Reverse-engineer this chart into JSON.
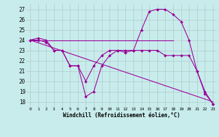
{
  "xlabel": "Windchill (Refroidissement éolien,°C)",
  "background_color": "#c8ecec",
  "grid_color": "#b0c8c8",
  "line_color": "#990099",
  "x_ticks": [
    0,
    1,
    2,
    3,
    4,
    5,
    6,
    7,
    8,
    9,
    10,
    11,
    12,
    13,
    14,
    15,
    16,
    17,
    18,
    19,
    20,
    21,
    22,
    23
  ],
  "y_ticks": [
    18,
    19,
    20,
    21,
    22,
    23,
    24,
    25,
    26,
    27
  ],
  "xlim": [
    -0.5,
    23.5
  ],
  "ylim": [
    17.5,
    27.5
  ],
  "series": [
    {
      "x": [
        0,
        1,
        2,
        3,
        4,
        5,
        6,
        7,
        8,
        9,
        10,
        11,
        12,
        13,
        14,
        15,
        16,
        17,
        18,
        19,
        20,
        21,
        22,
        23
      ],
      "y": [
        24.0,
        24.2,
        24.0,
        23.0,
        23.0,
        21.5,
        21.5,
        18.5,
        19.0,
        21.5,
        22.5,
        23.0,
        22.8,
        23.0,
        25.0,
        26.8,
        27.0,
        27.0,
        26.5,
        25.8,
        24.0,
        21.0,
        19.0,
        17.8
      ],
      "marker": true,
      "markersize": 2.0
    },
    {
      "x": [
        0,
        18
      ],
      "y": [
        24.0,
        24.0
      ],
      "marker": false,
      "markersize": 0
    },
    {
      "x": [
        0,
        23
      ],
      "y": [
        24.0,
        18.0
      ],
      "marker": false,
      "markersize": 0
    },
    {
      "x": [
        0,
        1,
        2,
        3,
        4,
        5,
        6,
        7,
        8,
        9,
        10,
        11,
        12,
        13,
        14,
        15,
        16,
        17,
        18,
        19,
        20,
        21,
        22,
        23
      ],
      "y": [
        24.0,
        24.0,
        23.8,
        23.0,
        23.0,
        21.5,
        21.5,
        20.0,
        21.5,
        22.5,
        23.0,
        23.0,
        23.0,
        23.0,
        23.0,
        23.0,
        23.0,
        22.5,
        22.5,
        22.5,
        22.5,
        21.0,
        18.8,
        17.8
      ],
      "marker": true,
      "markersize": 2.0
    }
  ]
}
